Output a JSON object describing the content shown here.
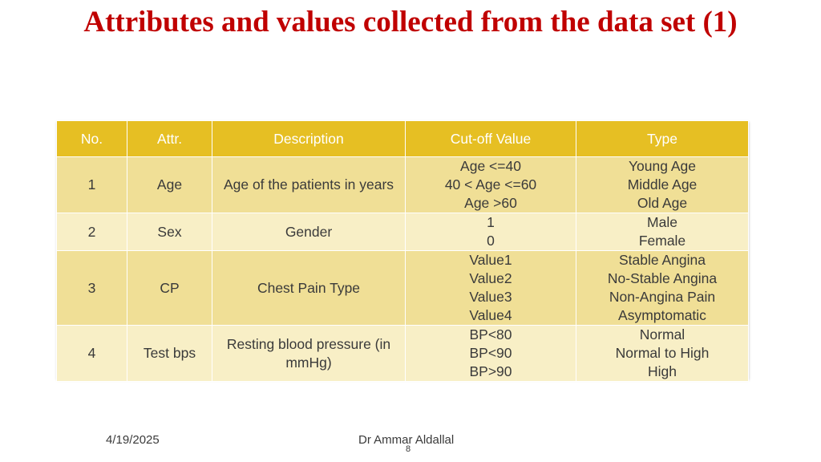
{
  "title": "Attributes and values collected from the data set (1)",
  "colors": {
    "title": "#c00000",
    "header_bg": "#e6bf23",
    "row_dark": "#f0df96",
    "row_light": "#f8efc6"
  },
  "table": {
    "headers": [
      "No.",
      "Attr.",
      "Description",
      "Cut-off Value",
      "Type"
    ],
    "rows": [
      {
        "no": "1",
        "attr": "Age",
        "description": "Age of the patients in years",
        "cutoff": [
          "Age <=40",
          "40 < Age <=60",
          "Age >60"
        ],
        "type": [
          "Young Age",
          "Middle Age",
          "Old Age"
        ]
      },
      {
        "no": "2",
        "attr": "Sex",
        "description": "Gender",
        "cutoff": [
          "1",
          "0"
        ],
        "type": [
          "Male",
          "Female"
        ]
      },
      {
        "no": "3",
        "attr": "CP",
        "description": "Chest Pain Type",
        "cutoff": [
          "Value1",
          "Value2",
          "Value3",
          "Value4"
        ],
        "type": [
          "Stable Angina",
          "No-Stable Angina",
          "Non-Angina Pain",
          "Asymptomatic"
        ]
      },
      {
        "no": "4",
        "attr": "Test bps",
        "description": "Resting blood pressure (in mmHg)",
        "cutoff": [
          "BP<80",
          "BP<90",
          "BP>90"
        ],
        "type": [
          "Normal",
          "Normal to High",
          "High"
        ]
      }
    ]
  },
  "footer": {
    "date": "4/19/2025",
    "author": "Dr Ammar Aldallal",
    "page": "8"
  }
}
